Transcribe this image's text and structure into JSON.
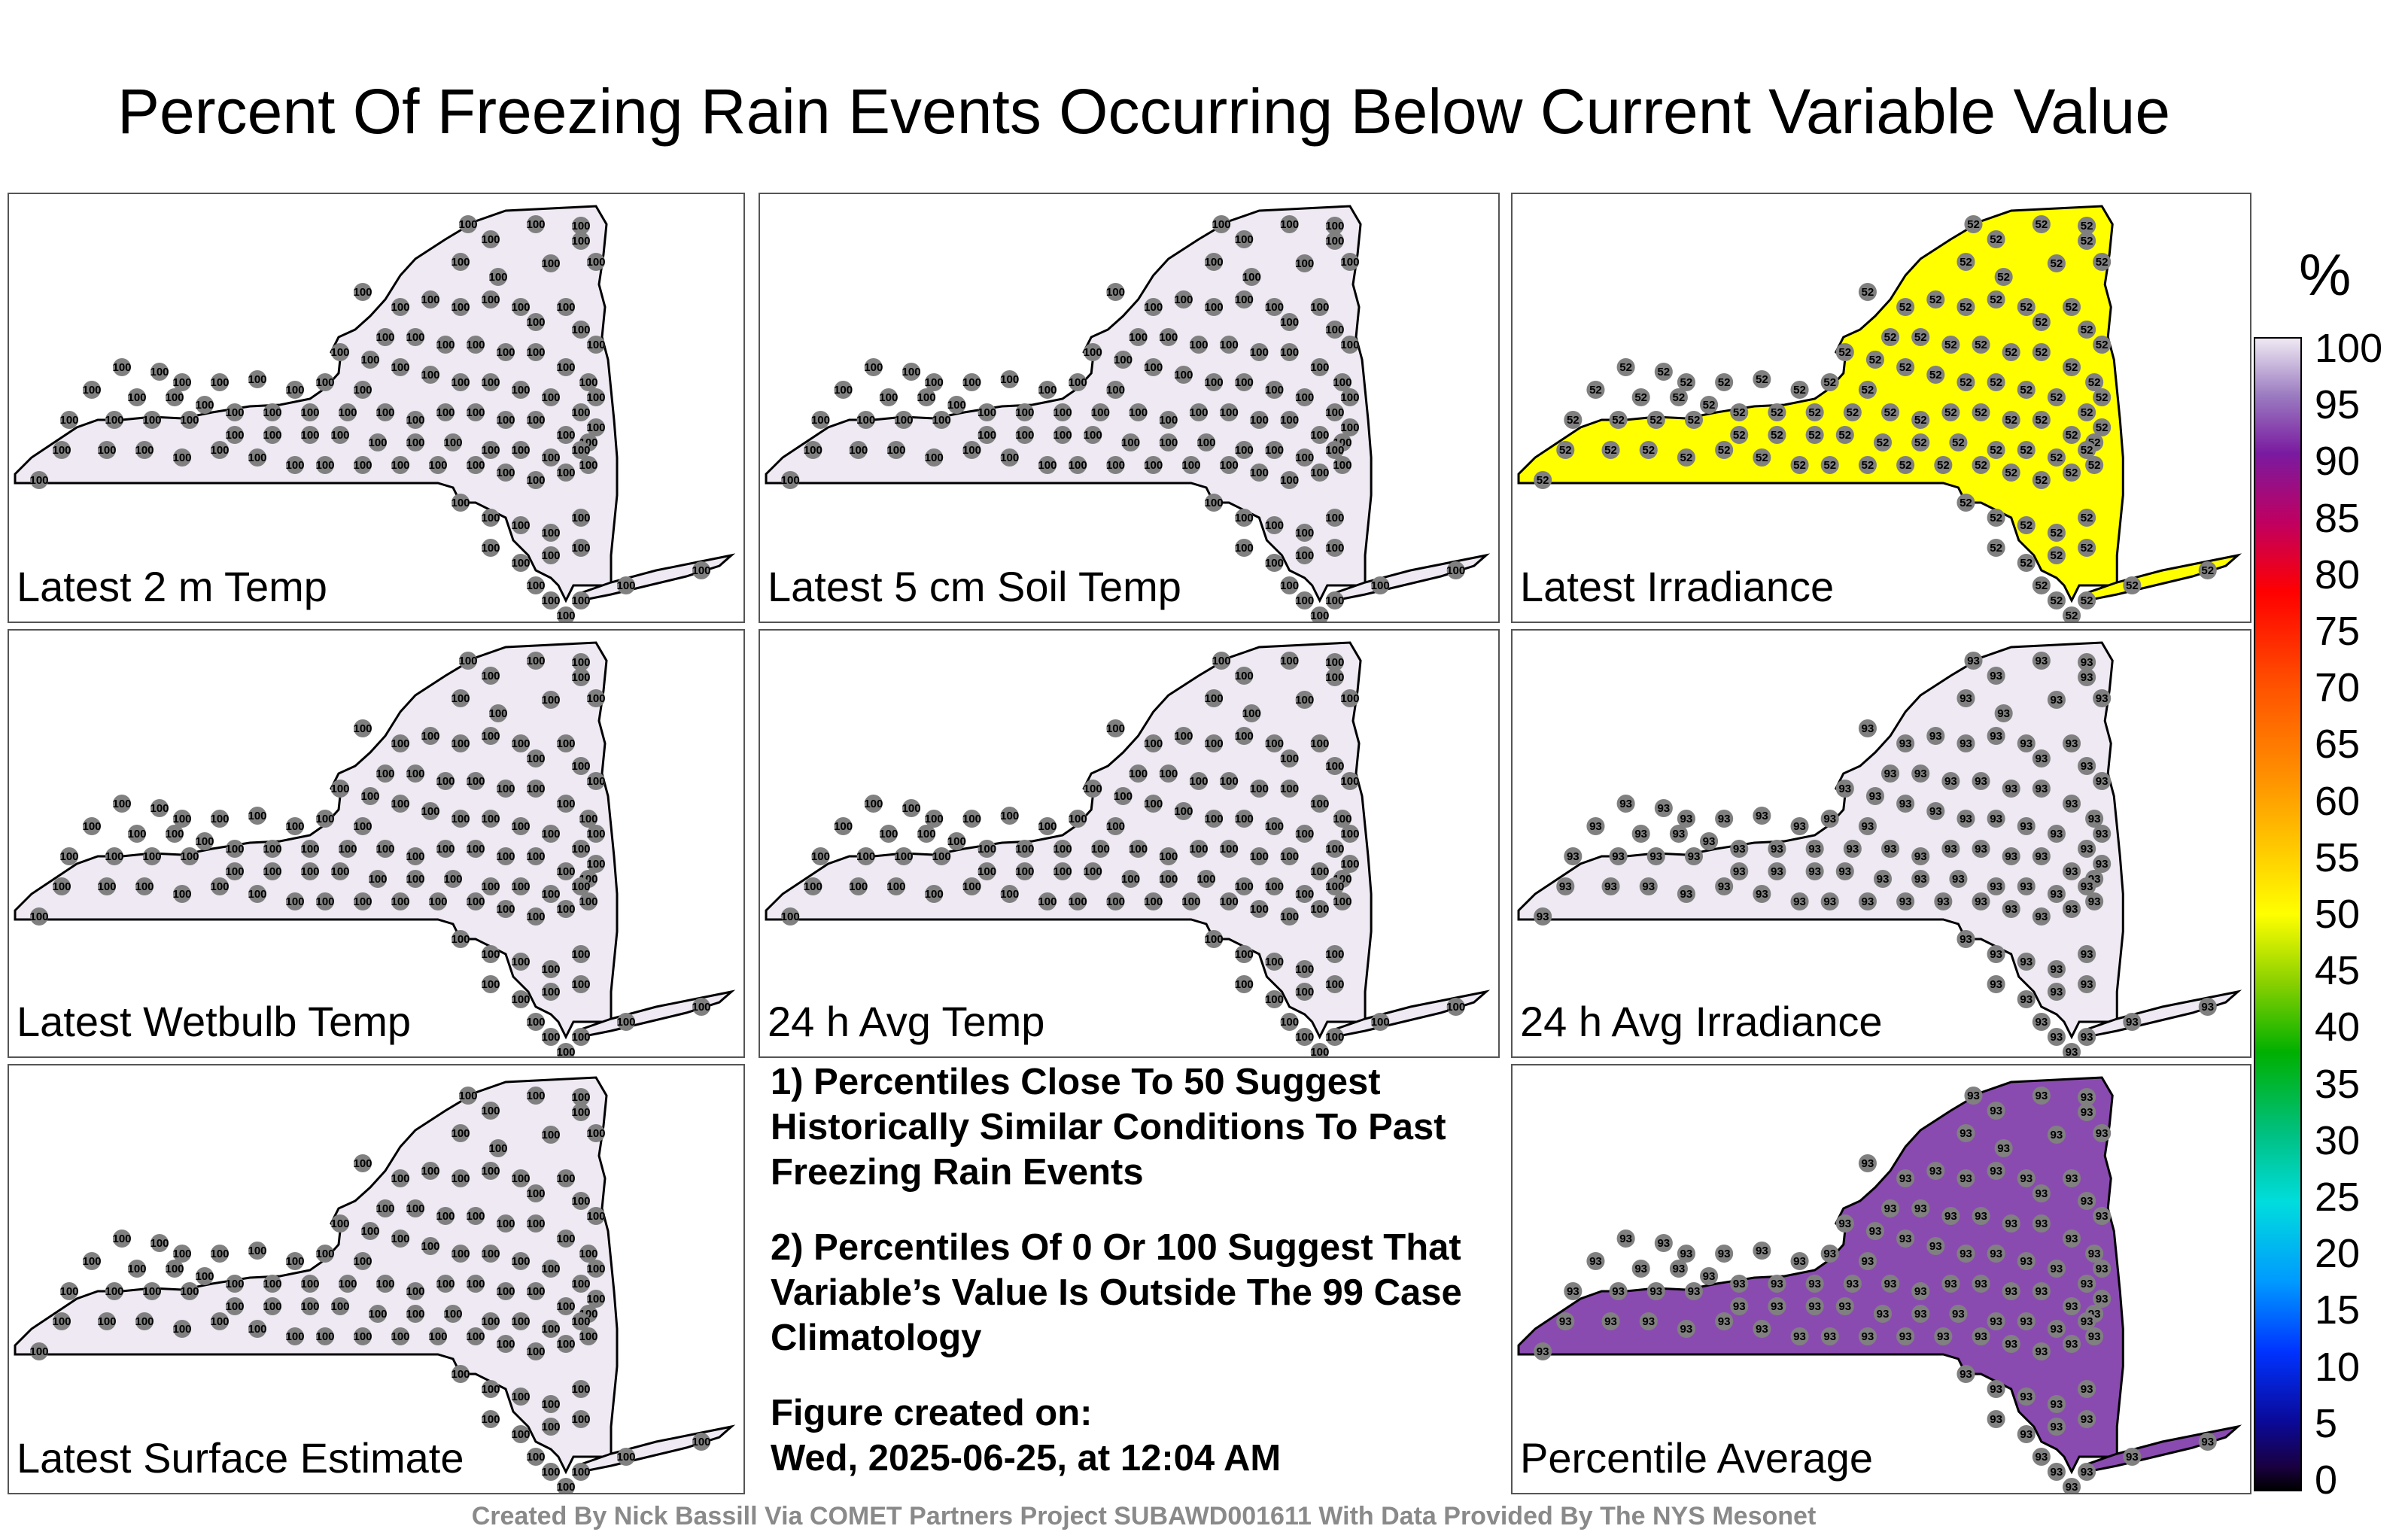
{
  "title": "Percent Of Freezing Rain Events Occurring Below Current Variable Value",
  "colorbar": {
    "unit": "%",
    "ticks": [
      "100",
      "95",
      "90",
      "85",
      "80",
      "75",
      "70",
      "65",
      "60",
      "55",
      "50",
      "45",
      "40",
      "35",
      "30",
      "25",
      "20",
      "15",
      "10",
      "5",
      "0"
    ]
  },
  "panels": [
    {
      "label": "Latest 2 m Temp",
      "value": "100",
      "fill": "#efe9f3"
    },
    {
      "label": "Latest 5 cm Soil Temp",
      "value": "100",
      "fill": "#efe9f3"
    },
    {
      "label": "Latest Irradiance",
      "value": "52",
      "fill": "#ffff00"
    },
    {
      "label": "Latest Wetbulb Temp",
      "value": "100",
      "fill": "#efe9f3"
    },
    {
      "label": "24 h Avg Temp",
      "value": "100",
      "fill": "#efe9f3"
    },
    {
      "label": "24 h Avg Irradiance",
      "value": "93",
      "fill": "#efe9f3"
    },
    {
      "label": "Latest Surface Estimate",
      "value": "100",
      "fill": "#efe9f3"
    },
    {
      "label": "Percentile Average",
      "value": "93",
      "fill": "#8a4bb0"
    }
  ],
  "notes": {
    "n1": "1) Percentiles Close To 50 Suggest Historically Similar Conditions To Past Freezing Rain Events",
    "n2": "2) Percentiles Of 0 Or 100 Suggest That Variable’s Value Is Outside The 99 Case Climatology",
    "created_label": "Figure created on:",
    "created_value": "Wed, 2025-06-25, at 12:04 AM"
  },
  "credit": "Created By Nick Bassill Via COMET Partners Project SUBAWD001611 With Data Provided By The NYS Mesonet",
  "chart_data": {
    "type": "heatmap",
    "title": "Percent Of Freezing Rain Events Occurring Below Current Variable Value",
    "colorbar_range": [
      0,
      100
    ],
    "series": [
      {
        "name": "Latest 2 m Temp",
        "values": [
          100
        ]
      },
      {
        "name": "Latest 5 cm Soil Temp",
        "values": [
          100
        ]
      },
      {
        "name": "Latest Irradiance",
        "values": [
          52
        ]
      },
      {
        "name": "Latest Wetbulb Temp",
        "values": [
          100
        ]
      },
      {
        "name": "24 h Avg Temp",
        "values": [
          100
        ]
      },
      {
        "name": "24 h Avg Irradiance",
        "values": [
          93
        ]
      },
      {
        "name": "Latest Surface Estimate",
        "values": [
          100
        ]
      },
      {
        "name": "Percentile Average",
        "values": [
          93
        ]
      }
    ]
  }
}
